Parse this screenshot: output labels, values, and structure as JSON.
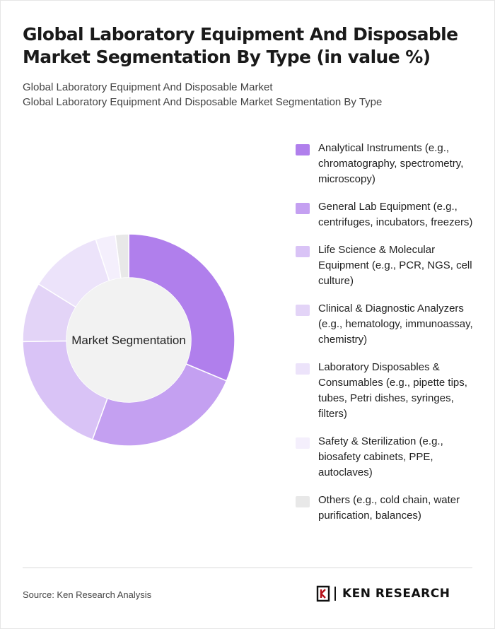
{
  "header": {
    "title": "Global Laboratory Equipment And Disposable Market Segmentation By Type (in value %)",
    "subtitle_line1": "Global Laboratory Equipment And Disposable Market",
    "subtitle_line2": "Global Laboratory Equipment And Disposable Market Segmentation By Type"
  },
  "chart_data": {
    "type": "pie",
    "variant": "donut",
    "center_label": "Market Segmentation",
    "categories": [
      "Analytical Instruments (e.g., chromatography, spectrometry, microscopy)",
      "General Lab Equipment (e.g., centrifuges, incubators, freezers)",
      "Life Science & Molecular Equipment (e.g., PCR, NGS, cell culture)",
      "Clinical & Diagnostic Analyzers (e.g., hematology, immunoassay, chemistry)",
      "Laboratory Disposables & Consumables (e.g., pipette tips, tubes, Petri dishes, syringes, filters)",
      "Safety & Sterilization (e.g., biosafety cabinets, PPE, autoclaves)",
      "Others (e.g., cold chain, water purification, balances)"
    ],
    "values": [
      31,
      24,
      19,
      9,
      11,
      3,
      2
    ],
    "colors": [
      "#b07fec",
      "#c4a0f1",
      "#d9c3f6",
      "#e3d4f7",
      "#ece3fa",
      "#f4effc",
      "#e8e8e8"
    ],
    "legend_position": "right"
  },
  "footer": {
    "source": "Source: Ken Research Analysis",
    "brand": "KEN RESEARCH"
  }
}
